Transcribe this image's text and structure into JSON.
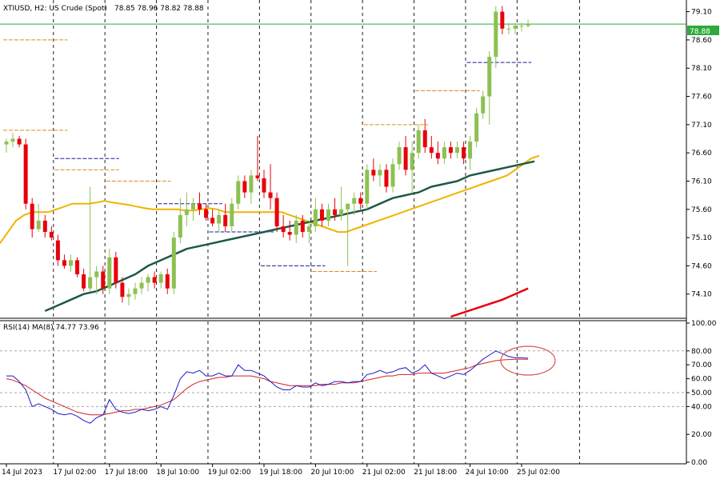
{
  "header": {
    "symbol": "XTIUSD, H2:  US Crude (Spot)",
    "ohlc": "78.85 78.96 78.82 78.88"
  },
  "rsi_header": "RSI(14) MA(8) 74.77 73.96",
  "current_price": "78.88",
  "colors": {
    "bull": "#8cc152",
    "bear": "#e8000b",
    "ma_fast": "#f0b400",
    "ma_slow": "#1e5a46",
    "channel": "#e8000b",
    "price_line": "#2eaa3a",
    "rsi": "#1a1acc",
    "rsi_ma": "#d42020",
    "level_orange": "#e08a1e",
    "level_blue": "#1a1a9a",
    "highlight": "#e05050"
  },
  "chart_data": [
    {
      "type": "candlestick",
      "title": "XTIUSD, H2:  US Crude (Spot)",
      "ylim": [
        73.7,
        79.25
      ],
      "y_ticks": [
        "79.10",
        "78.60",
        "78.10",
        "77.60",
        "77.10",
        "76.60",
        "76.10",
        "75.60",
        "75.10",
        "74.60",
        "74.10"
      ],
      "x_tick_labels": [
        "14 Jul 2023",
        "17 Jul 02:00",
        "17 Jul 18:00",
        "18 Jul 10:00",
        "19 Jul 02:00",
        "19 Jul 18:00",
        "20 Jul 10:00",
        "21 Jul 02:00",
        "21 Jul 18:00",
        "24 Jul 10:00",
        "25 Jul 02:00"
      ],
      "x_tick_index": [
        0,
        8,
        16,
        24,
        32,
        40,
        48,
        56,
        64,
        72,
        80
      ],
      "candles": [
        [
          76.75,
          76.85,
          76.6,
          76.8
        ],
        [
          76.8,
          76.95,
          76.7,
          76.85
        ],
        [
          76.85,
          76.9,
          76.7,
          76.75
        ],
        [
          76.75,
          76.85,
          75.6,
          75.7
        ],
        [
          75.7,
          75.8,
          75.1,
          75.25
        ],
        [
          75.25,
          75.7,
          75.2,
          75.4
        ],
        [
          75.4,
          75.5,
          75.1,
          75.2
        ],
        [
          75.2,
          75.3,
          75.05,
          75.1
        ],
        [
          75.05,
          75.15,
          74.6,
          74.7
        ],
        [
          74.7,
          74.8,
          74.55,
          74.6
        ],
        [
          74.6,
          74.8,
          74.5,
          74.7
        ],
        [
          74.7,
          74.75,
          74.4,
          74.45
        ],
        [
          74.45,
          74.55,
          74.15,
          74.2
        ],
        [
          74.2,
          76.0,
          74.15,
          74.4
        ],
        [
          74.4,
          74.6,
          74.1,
          74.5
        ],
        [
          74.5,
          74.6,
          74.1,
          74.2
        ],
        [
          74.2,
          74.9,
          74.1,
          74.75
        ],
        [
          74.75,
          74.85,
          74.2,
          74.3
        ],
        [
          74.3,
          74.4,
          73.95,
          74.05
        ],
        [
          74.05,
          74.2,
          73.9,
          74.1
        ],
        [
          74.1,
          74.3,
          74.0,
          74.2
        ],
        [
          74.2,
          74.4,
          74.1,
          74.3
        ],
        [
          74.3,
          74.45,
          74.15,
          74.4
        ],
        [
          74.4,
          74.5,
          74.2,
          74.3
        ],
        [
          74.3,
          74.5,
          74.2,
          74.45
        ],
        [
          74.45,
          74.55,
          74.1,
          74.2
        ],
        [
          74.2,
          75.2,
          74.1,
          75.1
        ],
        [
          75.1,
          75.8,
          75.0,
          75.5
        ],
        [
          75.5,
          75.9,
          75.3,
          75.6
        ],
        [
          75.6,
          75.8,
          75.4,
          75.7
        ],
        [
          75.7,
          75.9,
          75.5,
          75.6
        ],
        [
          75.6,
          75.7,
          75.4,
          75.45
        ],
        [
          75.45,
          75.6,
          75.3,
          75.35
        ],
        [
          75.35,
          75.6,
          75.2,
          75.5
        ],
        [
          75.5,
          75.7,
          75.2,
          75.3
        ],
        [
          75.3,
          75.8,
          75.2,
          75.7
        ],
        [
          75.7,
          76.2,
          75.6,
          76.1
        ],
        [
          76.1,
          76.2,
          75.8,
          75.9
        ],
        [
          75.9,
          76.3,
          75.7,
          76.2
        ],
        [
          76.2,
          76.9,
          76.1,
          76.15
        ],
        [
          76.15,
          76.3,
          75.8,
          75.9
        ],
        [
          75.9,
          76.4,
          75.6,
          75.8
        ],
        [
          75.8,
          75.9,
          75.2,
          75.3
        ],
        [
          75.3,
          75.5,
          75.1,
          75.2
        ],
        [
          75.2,
          75.4,
          75.05,
          75.15
        ],
        [
          75.15,
          75.5,
          75.0,
          75.4
        ],
        [
          75.4,
          75.5,
          75.1,
          75.2
        ],
        [
          75.2,
          75.4,
          75.0,
          75.3
        ],
        [
          75.3,
          75.8,
          75.2,
          75.6
        ],
        [
          75.6,
          75.7,
          75.3,
          75.4
        ],
        [
          75.4,
          75.7,
          75.3,
          75.6
        ],
        [
          75.6,
          75.8,
          75.4,
          75.5
        ],
        [
          75.5,
          76.0,
          75.4,
          75.6
        ],
        [
          75.6,
          75.7,
          74.6,
          75.7
        ],
        [
          75.7,
          75.9,
          75.5,
          75.8
        ],
        [
          75.8,
          75.9,
          75.6,
          75.7
        ],
        [
          75.7,
          76.4,
          75.6,
          76.3
        ],
        [
          76.3,
          76.5,
          76.1,
          76.2
        ],
        [
          76.2,
          76.4,
          76.0,
          76.3
        ],
        [
          76.3,
          76.4,
          75.9,
          76.0
        ],
        [
          76.0,
          76.5,
          75.9,
          76.4
        ],
        [
          76.4,
          76.8,
          76.3,
          76.7
        ],
        [
          76.7,
          76.9,
          76.2,
          76.3
        ],
        [
          76.3,
          76.8,
          75.9,
          76.6
        ],
        [
          76.6,
          77.1,
          76.5,
          77.0
        ],
        [
          77.0,
          77.2,
          76.6,
          76.7
        ],
        [
          76.7,
          76.9,
          76.5,
          76.6
        ],
        [
          76.6,
          76.8,
          76.4,
          76.5
        ],
        [
          76.5,
          76.8,
          76.4,
          76.7
        ],
        [
          76.7,
          76.8,
          76.5,
          76.6
        ],
        [
          76.6,
          76.8,
          76.5,
          76.7
        ],
        [
          76.7,
          76.8,
          76.4,
          76.5
        ],
        [
          76.5,
          76.9,
          76.3,
          76.8
        ],
        [
          76.8,
          77.4,
          76.7,
          77.3
        ],
        [
          77.3,
          77.7,
          77.2,
          77.6
        ],
        [
          77.6,
          78.4,
          77.1,
          78.3
        ],
        [
          78.3,
          79.2,
          78.1,
          79.1
        ],
        [
          79.1,
          79.2,
          78.7,
          78.8
        ],
        [
          78.8,
          78.9,
          78.7,
          78.8
        ],
        [
          78.8,
          78.9,
          78.7,
          78.85
        ],
        [
          78.85,
          78.9,
          78.75,
          78.85
        ],
        [
          78.85,
          78.96,
          78.82,
          78.88
        ]
      ],
      "series": [
        {
          "name": "",
          "values": [
            75.0,
            75.2,
            75.4,
            75.5,
            75.55,
            75.55,
            75.55,
            75.6,
            75.65,
            75.7,
            75.7,
            75.7,
            75.72,
            75.75,
            75.72,
            75.7,
            75.68,
            75.65,
            75.62,
            75.6,
            75.6,
            75.6,
            75.6,
            75.58,
            75.58,
            75.6,
            75.62,
            75.6,
            75.55,
            75.55,
            75.55,
            75.55,
            75.55,
            75.55,
            75.55,
            75.55,
            75.5,
            75.45,
            75.4,
            75.35,
            75.3,
            75.25,
            75.2,
            75.2,
            75.25,
            75.3,
            75.35,
            75.4,
            75.45,
            75.5,
            75.55,
            75.6,
            75.65,
            75.7,
            75.75,
            75.8,
            75.85,
            75.9,
            75.95,
            76.0,
            76.05,
            76.1,
            76.15,
            76.2,
            76.3,
            76.4,
            76.5,
            76.55
          ]
        },
        {
          "name": "",
          "values": [
            73.8,
            73.9,
            74.0,
            74.1,
            74.15,
            74.25,
            74.35,
            74.45,
            74.6,
            74.7,
            74.8,
            74.9,
            74.95,
            75.0,
            75.05,
            75.1,
            75.15,
            75.2,
            75.25,
            75.3,
            75.35,
            75.4,
            75.45,
            75.5,
            75.55,
            75.6,
            75.7,
            75.8,
            75.85,
            75.9,
            76.0,
            76.05,
            76.1,
            76.2,
            76.25,
            76.3,
            76.35,
            76.4,
            76.45
          ]
        },
        {
          "name": "",
          "values": [
            73.7,
            73.85,
            74.0,
            74.2
          ]
        }
      ],
      "levels": [
        {
          "price": 77.0,
          "color": "orange"
        },
        {
          "price": 76.5,
          "color": "blue"
        },
        {
          "price": 76.1,
          "color": "orange"
        },
        {
          "price": 75.7,
          "color": "blue"
        },
        {
          "price": 75.2,
          "color": "blue"
        },
        {
          "price": 74.6,
          "color": "blue"
        },
        {
          "price": 74.5,
          "color": "orange"
        },
        {
          "price": 77.1,
          "color": "orange"
        },
        {
          "price": 77.7,
          "color": "orange"
        },
        {
          "price": 78.2,
          "color": "blue"
        },
        {
          "price": 78.6,
          "color": "orange"
        },
        {
          "price": 76.3,
          "color": "orange"
        }
      ]
    },
    {
      "type": "line",
      "title": "RSI(14) MA(8) 74.77 73.96",
      "ylim": [
        0,
        100
      ],
      "y_ticks": [
        "100.00",
        "80.00",
        "70.00",
        "60.00",
        "50.00",
        "40.00",
        "20.00",
        "0.00"
      ],
      "series": [
        {
          "name": "RSI(14)",
          "values": [
            62,
            62,
            58,
            52,
            40,
            42,
            40,
            38,
            35,
            34,
            35,
            33,
            30,
            28,
            32,
            34,
            45,
            38,
            36,
            35,
            36,
            38,
            37,
            38,
            40,
            38,
            48,
            60,
            65,
            64,
            66,
            62,
            62,
            64,
            62,
            62,
            70,
            66,
            66,
            64,
            62,
            58,
            54,
            52,
            52,
            55,
            54,
            54,
            57,
            55,
            56,
            58,
            58,
            57,
            58,
            58,
            63,
            64,
            66,
            64,
            65,
            67,
            68,
            64,
            66,
            70,
            64,
            62,
            60,
            62,
            64,
            63,
            66,
            70,
            74,
            77,
            80,
            78,
            76,
            75,
            75,
            74.77
          ]
        },
        {
          "name": "MA(8)",
          "values": [
            60,
            59,
            57,
            55,
            52,
            49,
            46,
            44,
            42,
            40,
            38,
            36,
            35,
            34,
            34,
            34,
            35,
            36,
            37,
            37,
            38,
            38,
            39,
            40,
            41,
            43,
            45,
            49,
            53,
            56,
            58,
            59,
            60,
            61,
            61,
            62,
            62,
            62,
            62,
            61,
            60,
            58,
            57,
            56,
            55,
            55,
            55,
            55,
            55,
            56,
            56,
            56,
            57,
            57,
            57,
            58,
            59,
            60,
            61,
            62,
            62,
            63,
            63,
            63,
            64,
            64,
            64,
            64,
            64,
            65,
            66,
            67,
            68,
            70,
            71,
            72,
            73,
            73.5,
            73.8,
            73.96,
            73.96,
            73.96
          ]
        }
      ],
      "highlight": "ellipse around latest RSI values"
    }
  ]
}
